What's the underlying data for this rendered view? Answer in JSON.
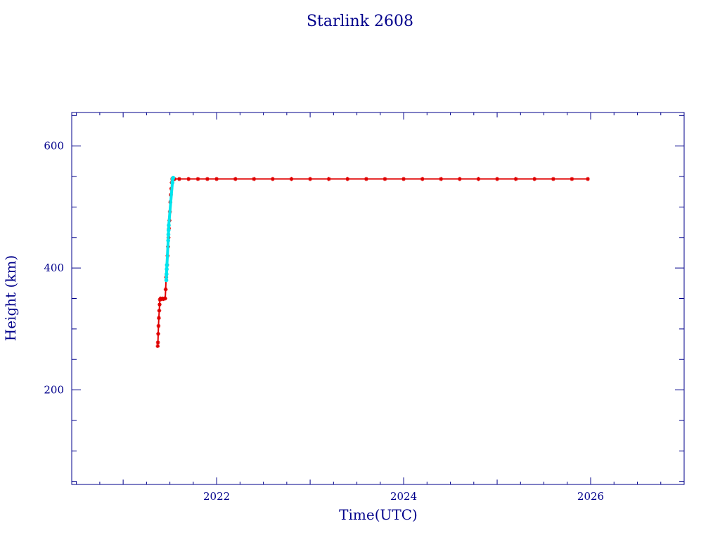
{
  "chart_data": {
    "type": "scatter",
    "title": "Starlink 2608",
    "xlabel": "Time(UTC)",
    "ylabel": "Height (km)",
    "xlim": [
      2020.45,
      2027.0
    ],
    "ylim": [
      45,
      655
    ],
    "x_ticks": [
      2022,
      2024,
      2026
    ],
    "y_ticks": [
      200,
      400,
      600
    ],
    "grid": false,
    "colors": {
      "axes": "#00008b",
      "primary": "#e00000",
      "secondary": "#00e5ee"
    },
    "series": [
      {
        "color": "#e00000",
        "marker": "star",
        "points": [
          [
            2021.37,
            272
          ],
          [
            2021.372,
            278
          ],
          [
            2021.375,
            292
          ],
          [
            2021.378,
            305
          ],
          [
            2021.382,
            318
          ],
          [
            2021.386,
            330
          ],
          [
            2021.39,
            340
          ],
          [
            2021.393,
            348
          ],
          [
            2021.4,
            350
          ],
          [
            2021.41,
            349
          ],
          [
            2021.42,
            350
          ],
          [
            2021.43,
            349
          ],
          [
            2021.44,
            350
          ],
          [
            2021.45,
            350
          ],
          [
            2021.455,
            365
          ],
          [
            2021.46,
            385
          ],
          [
            2021.47,
            405
          ],
          [
            2021.475,
            420
          ],
          [
            2021.48,
            435
          ],
          [
            2021.485,
            450
          ],
          [
            2021.49,
            465
          ],
          [
            2021.495,
            478
          ],
          [
            2021.5,
            492
          ],
          [
            2021.505,
            508
          ],
          [
            2021.51,
            520
          ],
          [
            2021.515,
            530
          ],
          [
            2021.52,
            540
          ],
          [
            2021.525,
            546
          ],
          [
            2021.55,
            546
          ],
          [
            2021.6,
            546
          ],
          [
            2021.7,
            546
          ],
          [
            2021.8,
            546
          ],
          [
            2021.9,
            546
          ],
          [
            2022.0,
            546
          ],
          [
            2022.2,
            546
          ],
          [
            2022.4,
            546
          ],
          [
            2022.6,
            546
          ],
          [
            2022.8,
            546
          ],
          [
            2023.0,
            546
          ],
          [
            2023.2,
            546
          ],
          [
            2023.4,
            546
          ],
          [
            2023.6,
            546
          ],
          [
            2023.8,
            546
          ],
          [
            2024.0,
            546
          ],
          [
            2024.2,
            546
          ],
          [
            2024.4,
            546
          ],
          [
            2024.6,
            546
          ],
          [
            2024.8,
            546
          ],
          [
            2025.0,
            546
          ],
          [
            2025.2,
            546
          ],
          [
            2025.4,
            546
          ],
          [
            2025.6,
            546
          ],
          [
            2025.8,
            546
          ],
          [
            2025.97,
            546
          ]
        ]
      },
      {
        "color": "#00e5ee",
        "marker": "circle",
        "points": [
          [
            2021.462,
            380
          ],
          [
            2021.464,
            390
          ],
          [
            2021.466,
            398
          ],
          [
            2021.468,
            405
          ],
          [
            2021.482,
            445
          ],
          [
            2021.484,
            455
          ],
          [
            2021.486,
            462
          ],
          [
            2021.488,
            470
          ],
          [
            2021.527,
            540
          ],
          [
            2021.53,
            546
          ],
          [
            2021.535,
            548
          ]
        ]
      }
    ]
  }
}
